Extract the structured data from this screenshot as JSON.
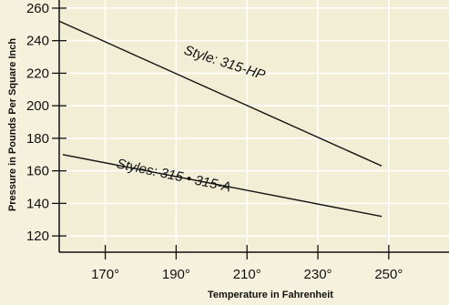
{
  "chart_data": {
    "type": "line",
    "title": "",
    "xlabel": "Temperature in Fahrenheit",
    "ylabel": "Pressure in Pounds Per Square Inch",
    "xlim": [
      157,
      267
    ],
    "ylim": [
      110,
      265
    ],
    "x_ticks": [
      170,
      190,
      210,
      230,
      250
    ],
    "x_tick_labels": [
      "170°",
      "190°",
      "210°",
      "230°",
      "250°"
    ],
    "y_ticks": [
      120,
      140,
      160,
      180,
      200,
      220,
      240,
      260
    ],
    "y_tick_labels": [
      "120",
      "140",
      "160",
      "180",
      "200",
      "220",
      "240",
      "260"
    ],
    "grid": true,
    "legend": "none",
    "colors": {
      "background": "#f5f1dc",
      "plot_background": "#f2eed6",
      "grid": "#ffffff",
      "line": "#111111",
      "frame": "#111111"
    },
    "series": [
      {
        "x": [
          157,
          248
        ],
        "y": [
          252,
          163
        ]
      },
      {
        "x": [
          158,
          248
        ],
        "y": [
          170,
          132
        ]
      }
    ],
    "annotations": [
      {
        "text": "Style: 315-HP",
        "x": 192,
        "y": 232,
        "angle": 18
      },
      {
        "text": "Styles: 315 • 315-A",
        "x": 173,
        "y": 162,
        "angle": 12
      }
    ]
  }
}
